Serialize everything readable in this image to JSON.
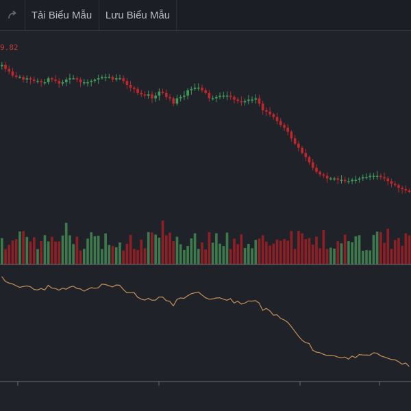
{
  "toolbar": {
    "redo_icon": "redo-arrow-icon",
    "load_template_label": "Tải Biểu Mẫu",
    "save_template_label": "Lưu Biểu Mẫu"
  },
  "chart": {
    "price_label": "9.82",
    "colors": {
      "background": "#20222a",
      "up": "#3f9a5a",
      "down": "#c0272d",
      "volume_up": "#3d7a4c",
      "volume_down": "#8f1f24",
      "indicator_line": "#c8925a",
      "separator": "#6c6f78"
    }
  },
  "chart_data": {
    "type": "candlestick",
    "grid": false,
    "panes": [
      "price",
      "volume",
      "indicator"
    ],
    "close_series": [
      95,
      92,
      90,
      87,
      86,
      86,
      84,
      85,
      84,
      83,
      83,
      82,
      82,
      85,
      84,
      83,
      81,
      82,
      84,
      85,
      85,
      84,
      82,
      82,
      82,
      83,
      84,
      85,
      86,
      86,
      86,
      84,
      85,
      85,
      83,
      80,
      78,
      77,
      74,
      73,
      72,
      73,
      70,
      72,
      75,
      74,
      71,
      70,
      66,
      70,
      71,
      72,
      76,
      77,
      78,
      78,
      76,
      74,
      70,
      70,
      71,
      72,
      72,
      72,
      71,
      69,
      68,
      67,
      68,
      69,
      69,
      70,
      66,
      61,
      60,
      58,
      56,
      53,
      50,
      48,
      45,
      40,
      36,
      33,
      29,
      26,
      22,
      18,
      15,
      13,
      12,
      10,
      10,
      10,
      9,
      9,
      8,
      8,
      9,
      9,
      10,
      11,
      11,
      12,
      12,
      12,
      11,
      10,
      8,
      6,
      5,
      3,
      2,
      1,
      0
    ]
  }
}
